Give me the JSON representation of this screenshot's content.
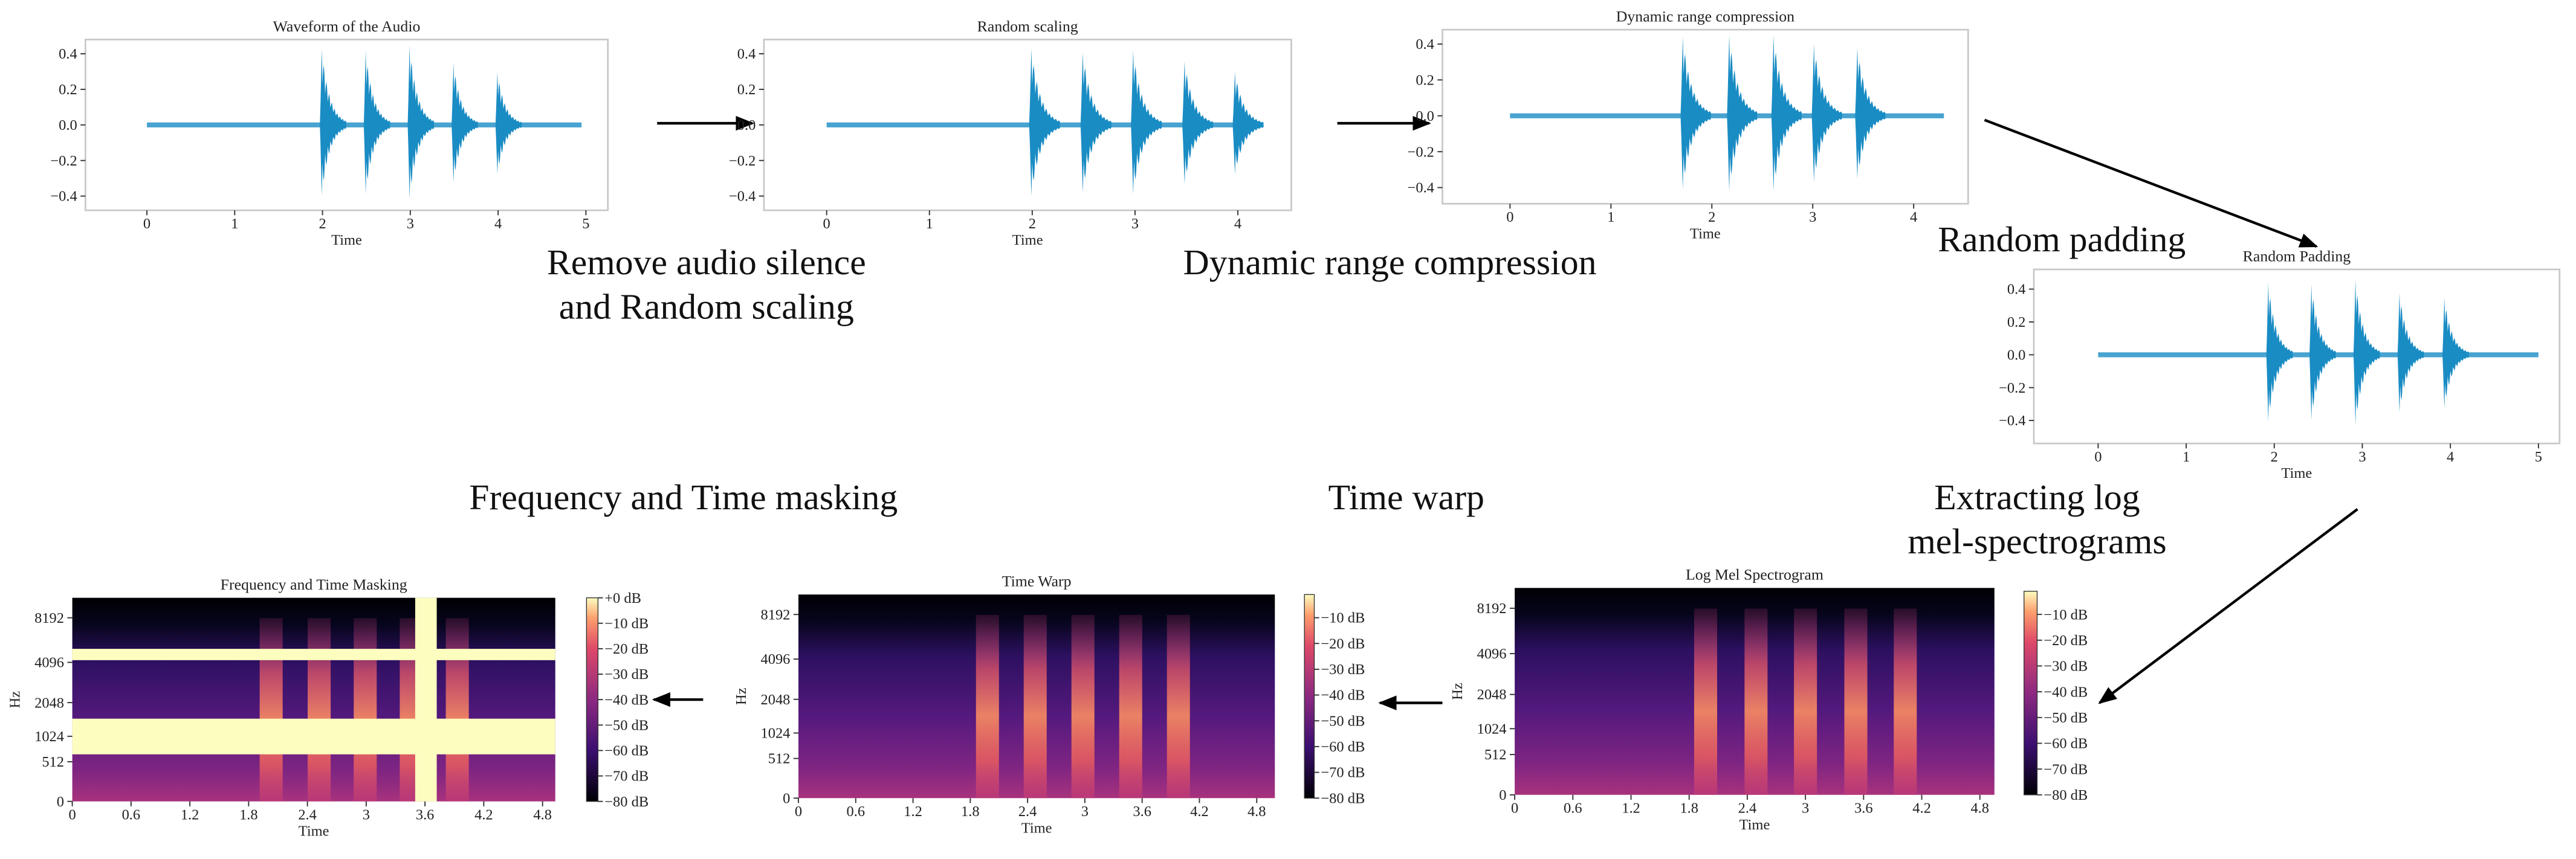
{
  "panels": [
    {
      "type": "waveform",
      "title": "Waveform of the Audio",
      "xlabel": "Time",
      "color": "#1a8cc4",
      "xlim": [
        -0.7,
        5.25
      ],
      "xticks": [
        0,
        1,
        2,
        3,
        4,
        5
      ],
      "ylim": [
        -0.48,
        0.48
      ],
      "yticks": [
        0.4,
        0.2,
        {
          "value": 0,
          "label": "0.0"
        },
        {
          "value": -0.2,
          "label": "−0.2"
        },
        {
          "value": -0.4,
          "label": "−0.4"
        }
      ],
      "duration": 4.95,
      "bursts": {
        "x": [
          2.0,
          2.5,
          3.0,
          3.5,
          4.0
        ],
        "values": [
          0.43,
          0.42,
          0.45,
          0.35,
          0.3
        ]
      }
    },
    {
      "type": "waveform",
      "title": "Random scaling",
      "xlabel": "Time",
      "color": "#1a8cc4",
      "xlim": [
        -0.61,
        4.52
      ],
      "xticks": [
        0,
        1,
        2,
        3,
        4
      ],
      "ylim": [
        -0.48,
        0.48
      ],
      "yticks": [
        0.4,
        0.2,
        {
          "value": 0,
          "label": "0.0"
        },
        {
          "value": -0.2,
          "label": "−0.2"
        },
        {
          "value": -0.4,
          "label": "−0.4"
        }
      ],
      "duration": 4.25,
      "bursts": {
        "x": [
          2.0,
          2.5,
          2.99,
          3.49,
          3.98
        ],
        "values": [
          0.43,
          0.41,
          0.42,
          0.36,
          0.3
        ]
      }
    },
    {
      "type": "waveform",
      "title": "Dynamic range compression",
      "xlabel": "Time",
      "color": "#1a8cc4",
      "xlim": [
        -0.67,
        4.54
      ],
      "xticks": [
        0,
        1,
        2,
        3,
        4
      ],
      "ylim": [
        -0.49,
        0.48
      ],
      "yticks": [
        0.4,
        0.2,
        {
          "value": 0,
          "label": "0.0"
        },
        {
          "value": -0.2,
          "label": "−0.2"
        },
        {
          "value": -0.4,
          "label": "−0.4"
        }
      ],
      "duration": 4.3,
      "bursts": {
        "x": [
          1.72,
          2.18,
          2.62,
          3.02,
          3.45
        ],
        "values": [
          0.44,
          0.45,
          0.45,
          0.4,
          0.38
        ]
      }
    },
    {
      "type": "waveform",
      "title": "Random Padding",
      "xlabel": "Time",
      "color": "#1a8cc4",
      "xlim": [
        -0.73,
        5.24
      ],
      "xticks": [
        0,
        1,
        2,
        3,
        4,
        5
      ],
      "ylim": [
        -0.54,
        0.52
      ],
      "yticks": [
        0.4,
        0.2,
        {
          "value": 0,
          "label": "0.0"
        },
        {
          "value": -0.2,
          "label": "−0.2"
        },
        {
          "value": -0.4,
          "label": "−0.4"
        }
      ],
      "duration": 5.0,
      "bursts": {
        "x": [
          1.94,
          2.43,
          2.93,
          3.43,
          3.94
        ],
        "values": [
          0.44,
          0.43,
          0.46,
          0.38,
          0.35
        ]
      }
    },
    {
      "type": "spectrogram",
      "title": "Frequency and Time Masking",
      "xlabel": "Time",
      "ylabel": "Hz",
      "yscale": "mel",
      "xlim": [
        0,
        4.93
      ],
      "xticks": [
        0,
        0.6,
        1.2,
        1.8,
        2.4,
        3,
        3.6,
        4.2,
        4.8
      ],
      "ylim": [
        0,
        11025
      ],
      "yticks": [
        0,
        512,
        1024,
        2048,
        4096,
        8192
      ],
      "events": [
        2.03,
        2.52,
        2.99,
        3.46,
        3.93
      ],
      "freq_masks": [
        [
          643,
          1500
        ],
        [
          4245,
          5085
        ]
      ],
      "time_masks": [
        [
          3.5,
          3.72
        ]
      ],
      "mask_color": "#fcfdbf",
      "colorbar": {
        "ylim": [
          -80,
          0
        ],
        "ticks": [
          {
            "value": 0,
            "label": "+0 dB"
          },
          {
            "value": -10,
            "label": "−10 dB"
          },
          {
            "value": -20,
            "label": "−20 dB"
          },
          {
            "value": -30,
            "label": "−30 dB"
          },
          {
            "value": -40,
            "label": "−40 dB"
          },
          {
            "value": -50,
            "label": "−50 dB"
          },
          {
            "value": -60,
            "label": "−60 dB"
          },
          {
            "value": -70,
            "label": "−70 dB"
          },
          {
            "value": -80,
            "label": "−80 dB"
          }
        ]
      }
    },
    {
      "type": "spectrogram",
      "title": "Time Warp",
      "xlabel": "Time",
      "ylabel": "Hz",
      "yscale": "mel",
      "xlim": [
        0,
        4.99
      ],
      "xticks": [
        0,
        0.6,
        1.2,
        1.8,
        2.4,
        3,
        3.6,
        4.2,
        4.8
      ],
      "ylim": [
        0,
        11025
      ],
      "yticks": [
        0,
        512,
        1024,
        2048,
        4096,
        8192
      ],
      "events": [
        1.98,
        2.48,
        2.98,
        3.48,
        3.98
      ],
      "colorbar": {
        "ylim": [
          -80,
          -1
        ],
        "ticks": [
          {
            "value": -10,
            "label": "−10 dB"
          },
          {
            "value": -20,
            "label": "−20 dB"
          },
          {
            "value": -30,
            "label": "−30 dB"
          },
          {
            "value": -40,
            "label": "−40 dB"
          },
          {
            "value": -50,
            "label": "−50 dB"
          },
          {
            "value": -60,
            "label": "−60 dB"
          },
          {
            "value": -70,
            "label": "−70 dB"
          },
          {
            "value": -80,
            "label": "−80 dB"
          }
        ]
      }
    },
    {
      "type": "spectrogram",
      "title": "Log Mel Spectrogram",
      "xlabel": "Time",
      "ylabel": "Hz",
      "yscale": "mel",
      "xlim": [
        0,
        4.95
      ],
      "xticks": [
        0,
        0.6,
        1.2,
        1.8,
        2.4,
        3,
        3.6,
        4.2,
        4.8
      ],
      "ylim": [
        0,
        11025
      ],
      "yticks": [
        0,
        512,
        1024,
        2048,
        4096,
        8192
      ],
      "events": [
        1.97,
        2.49,
        3.0,
        3.52,
        4.03
      ],
      "colorbar": {
        "ylim": [
          -80,
          -1
        ],
        "ticks": [
          {
            "value": -10,
            "label": "−10 dB"
          },
          {
            "value": -20,
            "label": "−20 dB"
          },
          {
            "value": -30,
            "label": "−30 dB"
          },
          {
            "value": -40,
            "label": "−40 dB"
          },
          {
            "value": -50,
            "label": "−50 dB"
          },
          {
            "value": -60,
            "label": "−60 dB"
          },
          {
            "value": -70,
            "label": "−70 dB"
          },
          {
            "value": -80,
            "label": "−80 dB"
          }
        ]
      }
    }
  ],
  "steps": [
    {
      "lines": [
        "Remove audio silence",
        "and Random scaling"
      ]
    },
    {
      "lines": [
        "Dynamic range compression"
      ]
    },
    {
      "lines": [
        "Random padding"
      ]
    },
    {
      "lines": [
        "Extracting log",
        "mel-spectrograms"
      ]
    },
    {
      "lines": [
        "Time warp"
      ]
    },
    {
      "lines": [
        "Frequency and Time masking"
      ]
    }
  ]
}
